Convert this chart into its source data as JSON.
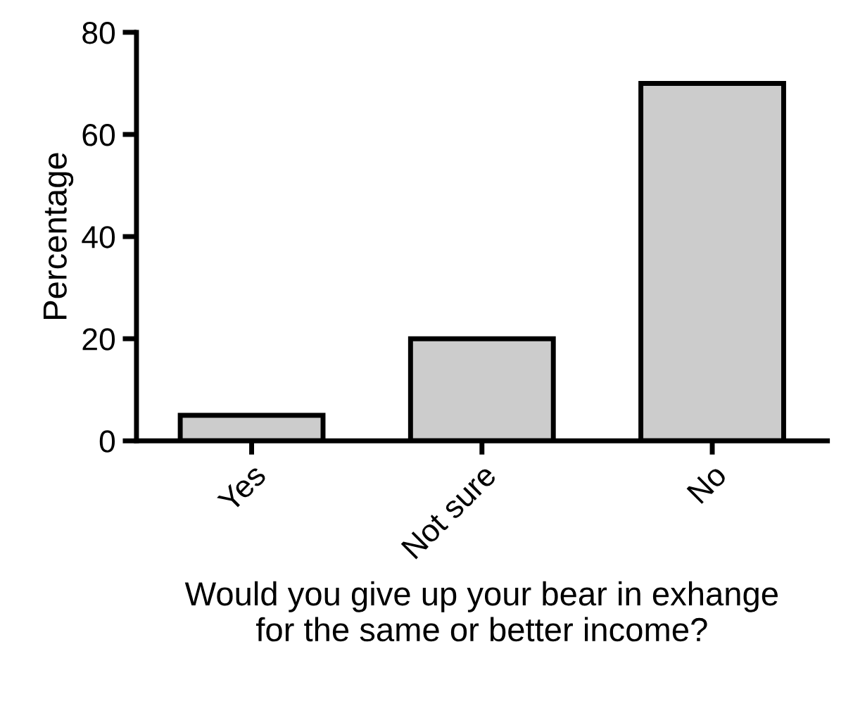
{
  "chart_data": {
    "type": "bar",
    "categories": [
      "Yes",
      "Not sure",
      "No"
    ],
    "values": [
      5,
      20,
      70
    ],
    "color": "#cccccc",
    "ylabel": "Percentage",
    "xlabel": "Would you give up your bear in exhange\nfor the same or better income?",
    "ylim": [
      0,
      80
    ],
    "yticks": [
      0,
      20,
      40,
      60,
      80
    ],
    "grid": false,
    "legend": false
  }
}
